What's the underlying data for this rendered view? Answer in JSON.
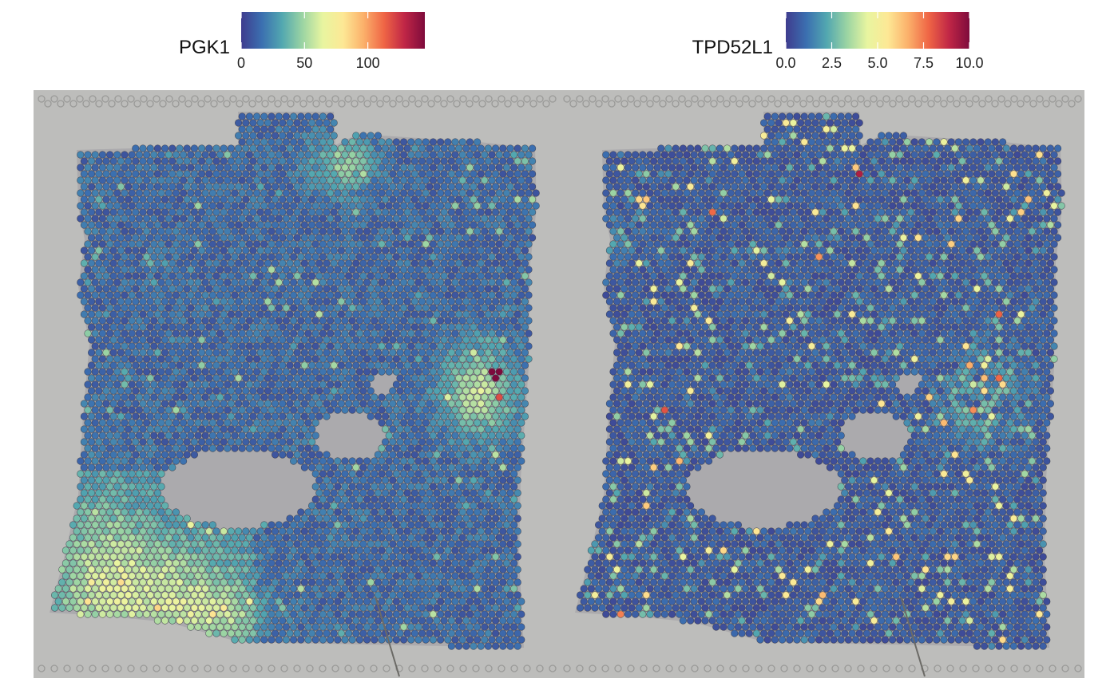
{
  "chart_data": [
    {
      "type": "heatmap",
      "subtype": "spatial-spot-map",
      "title": "",
      "legend_title": "PGK1",
      "colorbar": {
        "range": [
          0,
          145
        ],
        "ticks": [
          0,
          50,
          100
        ],
        "tick_labels": [
          "0",
          "50",
          "100"
        ],
        "palette": [
          "#3f3c8e",
          "#3b6fb0",
          "#52a7b0",
          "#9bd4a3",
          "#e8f5a0",
          "#fde895",
          "#fbb06a",
          "#ef6545",
          "#c02646",
          "#7e0b3c"
        ]
      },
      "background": "tissue histology image",
      "hotspots": [
        {
          "region": "upper-center",
          "level": 80
        },
        {
          "region": "right",
          "level": 145
        },
        {
          "region": "bottom-left",
          "level": 110
        },
        {
          "region": "left-edge",
          "level": 40
        }
      ]
    },
    {
      "type": "heatmap",
      "subtype": "spatial-spot-map",
      "title": "",
      "legend_title": "TPD52L1",
      "colorbar": {
        "range": [
          0,
          10
        ],
        "ticks": [
          0,
          2.5,
          5,
          7.5,
          10
        ],
        "tick_labels": [
          "0.0",
          "2.5",
          "5.0",
          "7.5",
          "10.0"
        ],
        "palette": [
          "#3f3c8e",
          "#3b6fb0",
          "#52a7b0",
          "#9bd4a3",
          "#e8f5a0",
          "#fde895",
          "#fbb06a",
          "#ef6545",
          "#c02646",
          "#7e0b3c"
        ]
      },
      "background": "tissue histology image",
      "hotspots": [
        {
          "region": "right",
          "level": 10
        },
        {
          "region": "upper-center",
          "level": 9
        },
        {
          "region": "left-edge",
          "level": 8
        }
      ]
    }
  ],
  "colors": {
    "panel_background": "#bdbdbb",
    "tissue": "#9c9ba2",
    "spot_outline": "#2b2b3a"
  }
}
